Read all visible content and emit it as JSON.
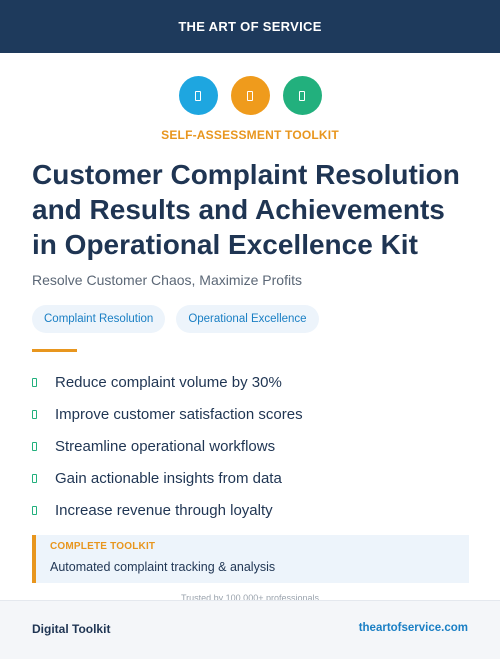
{
  "header": {
    "brand": "THE ART OF SERVICE"
  },
  "icons": [
    {
      "name": "blue-badge-icon",
      "color": "#1ea6e0"
    },
    {
      "name": "orange-badge-icon",
      "color": "#ef9b1c"
    },
    {
      "name": "green-badge-icon",
      "color": "#22b07d"
    }
  ],
  "eyebrow": "SELF-ASSESSMENT TOOLKIT",
  "title": "Customer Complaint Resolution and Results and Achievements in Operational Excellence Kit",
  "subtitle": "Resolve Customer Chaos, Maximize Profits",
  "tags": [
    "Complaint Resolution",
    "Operational Excellence"
  ],
  "benefits": [
    "Reduce complaint volume by 30%",
    "Improve customer satisfaction scores",
    "Streamline operational workflows",
    "Gain actionable insights from data",
    "Increase revenue through loyalty"
  ],
  "callout": {
    "label": "COMPLETE TOOLKIT",
    "text": "Automated complaint tracking & analysis"
  },
  "trusted_text": "Trusted by 100,000+ professionals",
  "footer": {
    "left": "Digital Toolkit",
    "right": "theartofservice.com"
  },
  "colors": {
    "navy": "#1e3a5c",
    "accent_orange": "#e8961e",
    "link_blue": "#1a7fc4",
    "check_green": "#22b07d",
    "tint": "#edf4fb"
  }
}
